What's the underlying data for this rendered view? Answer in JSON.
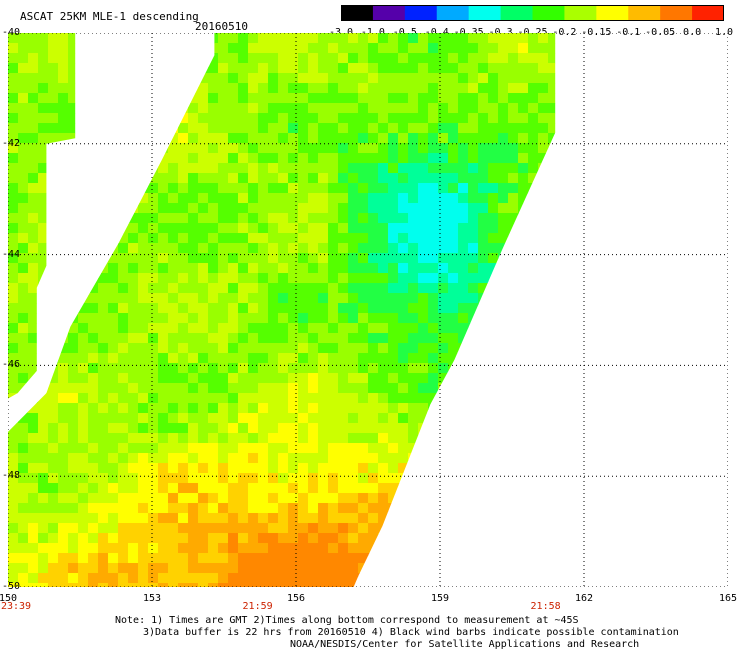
{
  "header": {
    "title": "ASCAT 25KM MLE-1 descending",
    "date": "20160510"
  },
  "colorbar": {
    "labels": [
      "-3.0",
      "-1.0",
      "-0.5",
      "-0.4",
      "-0.35",
      "-0.3",
      "-0.25",
      "-0.2",
      "-0.15",
      "-0.1",
      "-0.05",
      "0.0",
      "1.0"
    ],
    "colors": [
      "#000000",
      "#5500aa",
      "#0022ff",
      "#00aaff",
      "#00ffee",
      "#00ff66",
      "#33ff00",
      "#aaff00",
      "#ffff00",
      "#ffbb00",
      "#ff7700",
      "#ff2200"
    ]
  },
  "map": {
    "lon_ticks": [
      "150",
      "153",
      "156",
      "159",
      "162",
      "165"
    ],
    "lat_ticks": [
      "-40",
      "-42",
      "-44",
      "-46",
      "-48",
      "-50"
    ],
    "lon_range": [
      150,
      165
    ],
    "lat_range": [
      -40,
      -50
    ],
    "times": [
      {
        "lon": 150,
        "label": "23:39"
      },
      {
        "lon": 155.2,
        "label": "21:59"
      },
      {
        "lon": 161.2,
        "label": "21:58"
      }
    ],
    "swaths": [
      {
        "name": "west",
        "polygon": [
          [
            150,
            -40
          ],
          [
            151.4,
            -40
          ],
          [
            151.4,
            -41.9
          ],
          [
            150.8,
            -42.0
          ],
          [
            150.8,
            -44.2
          ],
          [
            150.6,
            -44.6
          ],
          [
            150.6,
            -46.1
          ],
          [
            150.2,
            -46.5
          ],
          [
            150,
            -46.6
          ]
        ]
      },
      {
        "name": "main",
        "polygon": [
          [
            154.3,
            -40
          ],
          [
            161.4,
            -40
          ],
          [
            161.4,
            -41.8
          ],
          [
            160.3,
            -43.9
          ],
          [
            159.3,
            -45.9
          ],
          [
            158.8,
            -46.7
          ],
          [
            157.8,
            -48.9
          ],
          [
            157.3,
            -49.8
          ],
          [
            157.2,
            -50
          ],
          [
            150,
            -50
          ],
          [
            150,
            -47.2
          ],
          [
            150.8,
            -46.5
          ],
          [
            151.3,
            -45.3
          ],
          [
            152.3,
            -43.8
          ],
          [
            153.2,
            -42.3
          ],
          [
            154.3,
            -40.4
          ]
        ]
      }
    ]
  },
  "notes": {
    "line1": "Note: 1) Times are GMT 2)Times along bottom correspond to measurement at ~45S",
    "line2": "3)Data buffer is 22 hrs from 20160510 4) Black wind barbs indicate possible contamination",
    "line3": "NOAA/NESDIS/Center for Satellite Applications and Research"
  }
}
